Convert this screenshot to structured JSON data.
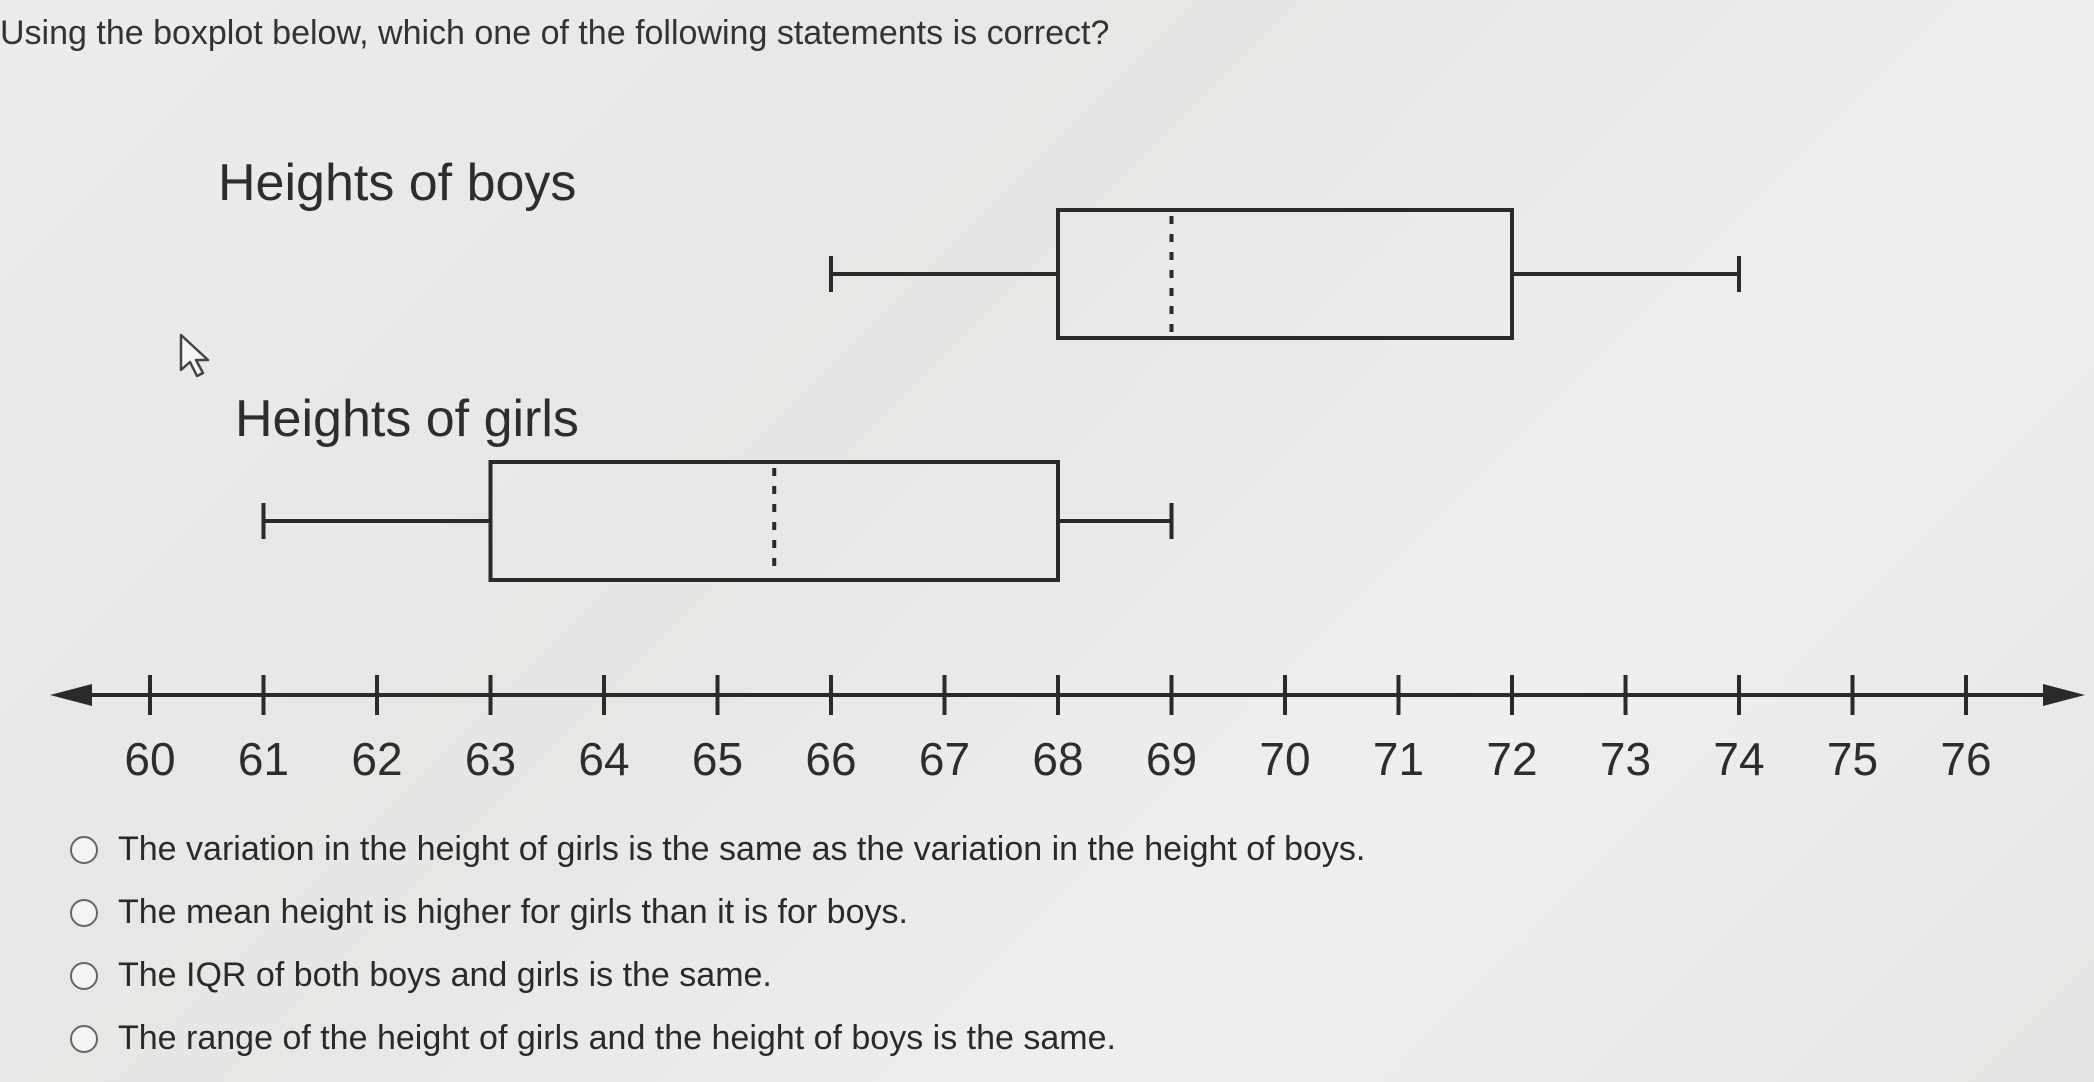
{
  "question": "Using the boxplot below, which one of the following statements is correct?",
  "chart_data": {
    "type": "boxplot",
    "series": [
      {
        "name": "Heights of boys",
        "min": 66,
        "q1": 68,
        "median": 69,
        "q3": 72,
        "max": 74
      },
      {
        "name": "Heights of girls",
        "min": 61,
        "q1": 63,
        "median": 65.5,
        "q3": 68,
        "max": 69
      }
    ],
    "x_ticks": [
      60,
      61,
      62,
      63,
      64,
      65,
      66,
      67,
      68,
      69,
      70,
      71,
      72,
      73,
      74,
      75,
      76
    ],
    "xlim": [
      60,
      76
    ],
    "median_style": "dotted",
    "axis_arrows": true
  },
  "options": [
    {
      "label": "The variation in the height of girls is the same as the variation in the height of boys."
    },
    {
      "label": "The mean height is higher for girls than it is for boys."
    },
    {
      "label": "The IQR of both boys and girls is the same."
    },
    {
      "label": "The range of the height of girls and the height of boys is the same."
    }
  ],
  "icons": {
    "cursor": "mouse-pointer-icon",
    "option_marker": "radio-button-icon"
  },
  "colors": {
    "ink": "#2a2a2a",
    "background": "#e9eae7"
  }
}
